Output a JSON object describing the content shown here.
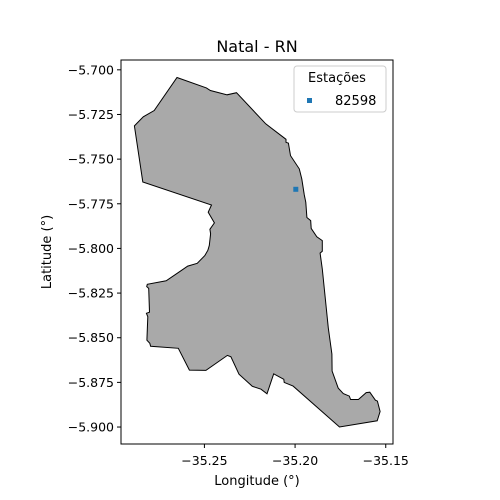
{
  "chart_data": {
    "type": "scatter",
    "title": "Natal - RN",
    "xlabel": "Longitude (°)",
    "ylabel": "Latitude (°)",
    "xlim": [
      -35.296,
      -35.146
    ],
    "ylim": [
      -5.9095,
      -5.6945
    ],
    "xticks": [
      -35.25,
      -35.2,
      -35.15
    ],
    "xtick_labels": [
      "−35.25",
      "−35.20",
      "−35.15"
    ],
    "yticks": [
      -5.7,
      -5.725,
      -5.75,
      -5.775,
      -5.8,
      -5.825,
      -5.85,
      -5.875,
      -5.9
    ],
    "ytick_labels": [
      "−5.700",
      "−5.725",
      "−5.750",
      "−5.775",
      "−5.800",
      "−5.825",
      "−5.850",
      "−5.875",
      "−5.900"
    ],
    "grid": false,
    "legend": {
      "title": "Estações",
      "placement": "top-right",
      "entries": [
        "82598"
      ]
    },
    "boundary_fill": "#a9a9a9",
    "boundary_edge": "#000000",
    "marker_color": "#1f77b4",
    "boundary": [
      [
        -35.2886,
        -5.7314
      ],
      [
        -35.2837,
        -5.7263
      ],
      [
        -35.2777,
        -5.7228
      ],
      [
        -35.2651,
        -5.7043
      ],
      [
        -35.2489,
        -5.7101
      ],
      [
        -35.2467,
        -5.7116
      ],
      [
        -35.2375,
        -5.714
      ],
      [
        -35.2323,
        -5.7128
      ],
      [
        -35.2162,
        -5.7302
      ],
      [
        -35.205,
        -5.7389
      ],
      [
        -35.205,
        -5.7406
      ],
      [
        -35.2037,
        -5.741
      ],
      [
        -35.2025,
        -5.748
      ],
      [
        -35.1977,
        -5.7555
      ],
      [
        -35.1963,
        -5.7611
      ],
      [
        -35.1949,
        -5.7701
      ],
      [
        -35.1941,
        -5.7742
      ],
      [
        -35.1935,
        -5.7827
      ],
      [
        -35.1914,
        -5.7844
      ],
      [
        -35.1911,
        -5.7888
      ],
      [
        -35.188,
        -5.7935
      ],
      [
        -35.185,
        -5.7956
      ],
      [
        -35.185,
        -5.8016
      ],
      [
        -35.1862,
        -5.8026
      ],
      [
        -35.185,
        -5.8115
      ],
      [
        -35.1817,
        -5.8445
      ],
      [
        -35.1797,
        -5.8591
      ],
      [
        -35.1796,
        -5.8686
      ],
      [
        -35.1762,
        -5.8782
      ],
      [
        -35.1734,
        -5.8813
      ],
      [
        -35.1701,
        -5.8827
      ],
      [
        -35.1694,
        -5.8846
      ],
      [
        -35.1651,
        -5.8846
      ],
      [
        -35.1608,
        -5.8807
      ],
      [
        -35.1588,
        -5.8805
      ],
      [
        -35.1557,
        -5.885
      ],
      [
        -35.1546,
        -5.8855
      ],
      [
        -35.1531,
        -5.8913
      ],
      [
        -35.1547,
        -5.8965
      ],
      [
        -35.1755,
        -5.9
      ],
      [
        -35.2011,
        -5.8771
      ],
      [
        -35.206,
        -5.875
      ],
      [
        -35.2062,
        -5.8733
      ],
      [
        -35.2118,
        -5.8702
      ],
      [
        -35.2155,
        -5.8814
      ],
      [
        -35.2188,
        -5.8788
      ],
      [
        -35.2236,
        -5.8772
      ],
      [
        -35.2309,
        -5.8704
      ],
      [
        -35.2354,
        -5.8607
      ],
      [
        -35.2373,
        -5.8599
      ],
      [
        -35.2492,
        -5.8683
      ],
      [
        -35.2583,
        -5.8681
      ],
      [
        -35.2644,
        -5.8559
      ],
      [
        -35.2797,
        -5.8548
      ],
      [
        -35.2801,
        -5.8531
      ],
      [
        -35.2817,
        -5.8514
      ],
      [
        -35.2812,
        -5.8382
      ],
      [
        -35.282,
        -5.8363
      ],
      [
        -35.2803,
        -5.8357
      ],
      [
        -35.2807,
        -5.8224
      ],
      [
        -35.2818,
        -5.8214
      ],
      [
        -35.2815,
        -5.8201
      ],
      [
        -35.2711,
        -5.8181
      ],
      [
        -35.2627,
        -5.8123
      ],
      [
        -35.2592,
        -5.8099
      ],
      [
        -35.254,
        -5.8083
      ],
      [
        -35.2498,
        -5.804
      ],
      [
        -35.2481,
        -5.801
      ],
      [
        -35.2473,
        -5.7983
      ],
      [
        -35.2466,
        -5.7918
      ],
      [
        -35.247,
        -5.7893
      ],
      [
        -35.2445,
        -5.7857
      ],
      [
        -35.2479,
        -5.7797
      ],
      [
        -35.2461,
        -5.7757
      ],
      [
        -35.284,
        -5.7628
      ],
      [
        -35.2886,
        -5.7314
      ]
    ],
    "series": [
      {
        "name": "82598",
        "x": [
          -35.1996
        ],
        "y": [
          -5.7669
        ]
      }
    ]
  }
}
